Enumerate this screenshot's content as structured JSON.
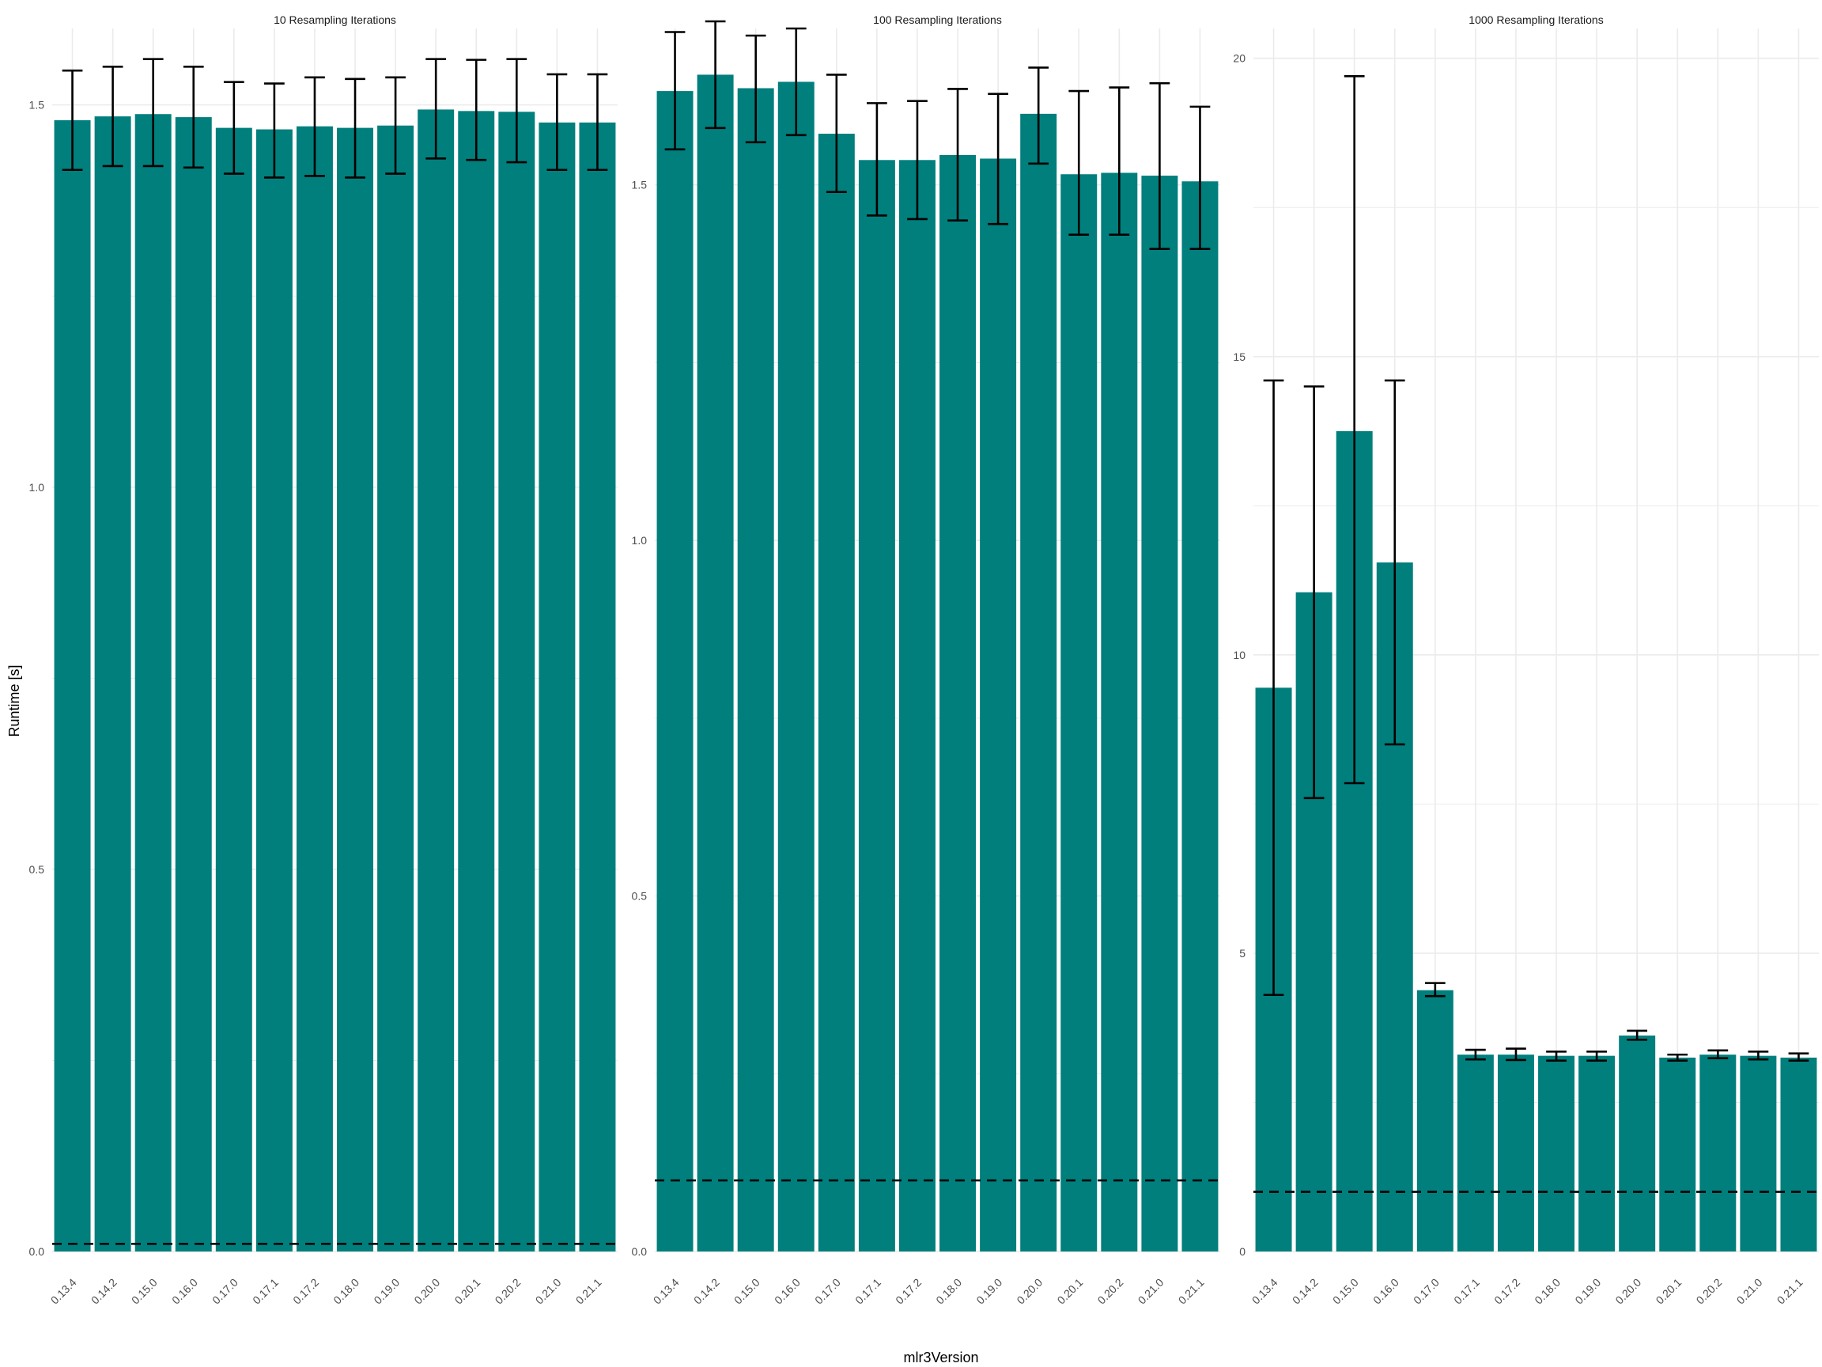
{
  "chart_data": {
    "type": "bar",
    "xlabel": "mlr3Version",
    "ylabel": "Runtime [s]",
    "categories": [
      "0.13.4",
      "0.14.2",
      "0.15.0",
      "0.16.0",
      "0.17.0",
      "0.17.1",
      "0.17.2",
      "0.18.0",
      "0.19.0",
      "0.20.0",
      "0.20.1",
      "0.20.2",
      "0.21.0",
      "0.21.1"
    ],
    "colors": {
      "bar": "#007f7d",
      "error_bar": "#000000",
      "reference_line": "#000000",
      "grid": "#ebebeb"
    },
    "grid": true,
    "legend": "none",
    "panels": [
      {
        "title": "10 Resampling Iterations",
        "ylim": [
          0,
          1.6
        ],
        "yticks": [
          0.0,
          0.5,
          1.0,
          1.5
        ],
        "ytick_labels": [
          "0.0",
          "0.5",
          "1.0",
          "1.5"
        ],
        "values": [
          1.48,
          1.485,
          1.488,
          1.484,
          1.47,
          1.468,
          1.472,
          1.47,
          1.473,
          1.494,
          1.492,
          1.491,
          1.477,
          1.477
        ],
        "error_low": [
          1.415,
          1.42,
          1.42,
          1.418,
          1.41,
          1.405,
          1.407,
          1.405,
          1.41,
          1.43,
          1.428,
          1.425,
          1.415,
          1.415
        ],
        "error_high": [
          1.545,
          1.55,
          1.56,
          1.55,
          1.53,
          1.528,
          1.536,
          1.534,
          1.536,
          1.56,
          1.559,
          1.56,
          1.54,
          1.54
        ],
        "reference_line": 0.01
      },
      {
        "title": "100 Resampling Iterations",
        "ylim": [
          0,
          1.72
        ],
        "yticks": [
          0.0,
          0.5,
          1.0,
          1.5
        ],
        "ytick_labels": [
          "0.0",
          "0.5",
          "1.0",
          "1.5"
        ],
        "values": [
          1.632,
          1.655,
          1.636,
          1.645,
          1.572,
          1.535,
          1.535,
          1.542,
          1.537,
          1.6,
          1.515,
          1.517,
          1.513,
          1.505
        ],
        "error_low": [
          1.55,
          1.58,
          1.56,
          1.57,
          1.49,
          1.457,
          1.452,
          1.45,
          1.445,
          1.53,
          1.43,
          1.43,
          1.41,
          1.41
        ],
        "error_high": [
          1.715,
          1.73,
          1.71,
          1.72,
          1.655,
          1.615,
          1.618,
          1.635,
          1.628,
          1.665,
          1.632,
          1.637,
          1.643,
          1.61
        ],
        "reference_line": 0.1
      },
      {
        "title": "1000 Resampling Iterations",
        "ylim": [
          0,
          20.5
        ],
        "yticks": [
          0,
          5,
          10,
          15,
          20
        ],
        "ytick_labels": [
          "0",
          "5",
          "10",
          "15",
          "20"
        ],
        "values": [
          9.45,
          11.05,
          13.75,
          11.55,
          4.38,
          3.3,
          3.3,
          3.28,
          3.28,
          3.62,
          3.25,
          3.3,
          3.28,
          3.25
        ],
        "error_low": [
          4.3,
          7.6,
          7.85,
          8.5,
          4.28,
          3.22,
          3.21,
          3.2,
          3.2,
          3.55,
          3.2,
          3.24,
          3.22,
          3.2
        ],
        "error_high": [
          14.6,
          14.5,
          19.7,
          14.6,
          4.5,
          3.38,
          3.4,
          3.35,
          3.35,
          3.7,
          3.3,
          3.37,
          3.35,
          3.32
        ],
        "reference_line": 1.0
      }
    ]
  }
}
